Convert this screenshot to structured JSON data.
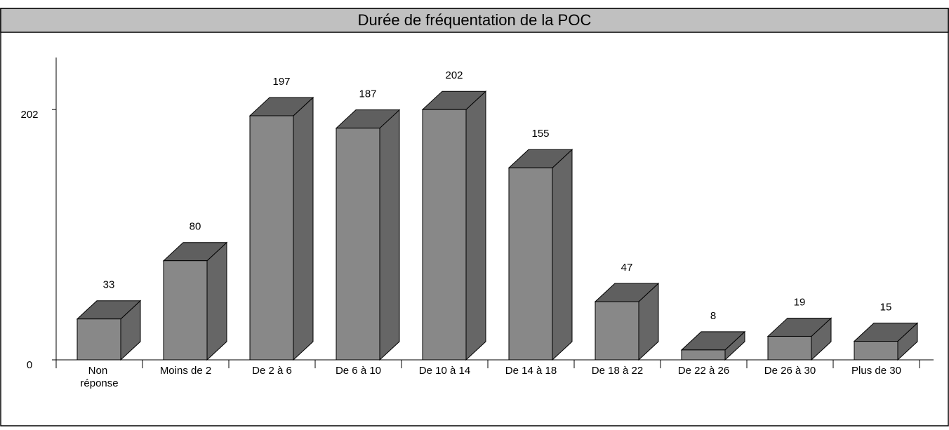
{
  "chart_data": {
    "type": "bar3d",
    "title": "Durée de fréquentation de la POC",
    "categories": [
      "Non réponse",
      "Moins de 2",
      "De 2 à 6",
      "De 6 à 10",
      "De 10 à 14",
      "De 14 à 18",
      "De 18 à 22",
      "De 22 à 26",
      "De 26 à 30",
      "Plus de 30"
    ],
    "values": [
      33,
      80,
      197,
      187,
      202,
      155,
      47,
      8,
      19,
      15
    ],
    "color": "#888888",
    "ylim": [
      0,
      244
    ],
    "yticks": [
      0,
      202
    ]
  }
}
